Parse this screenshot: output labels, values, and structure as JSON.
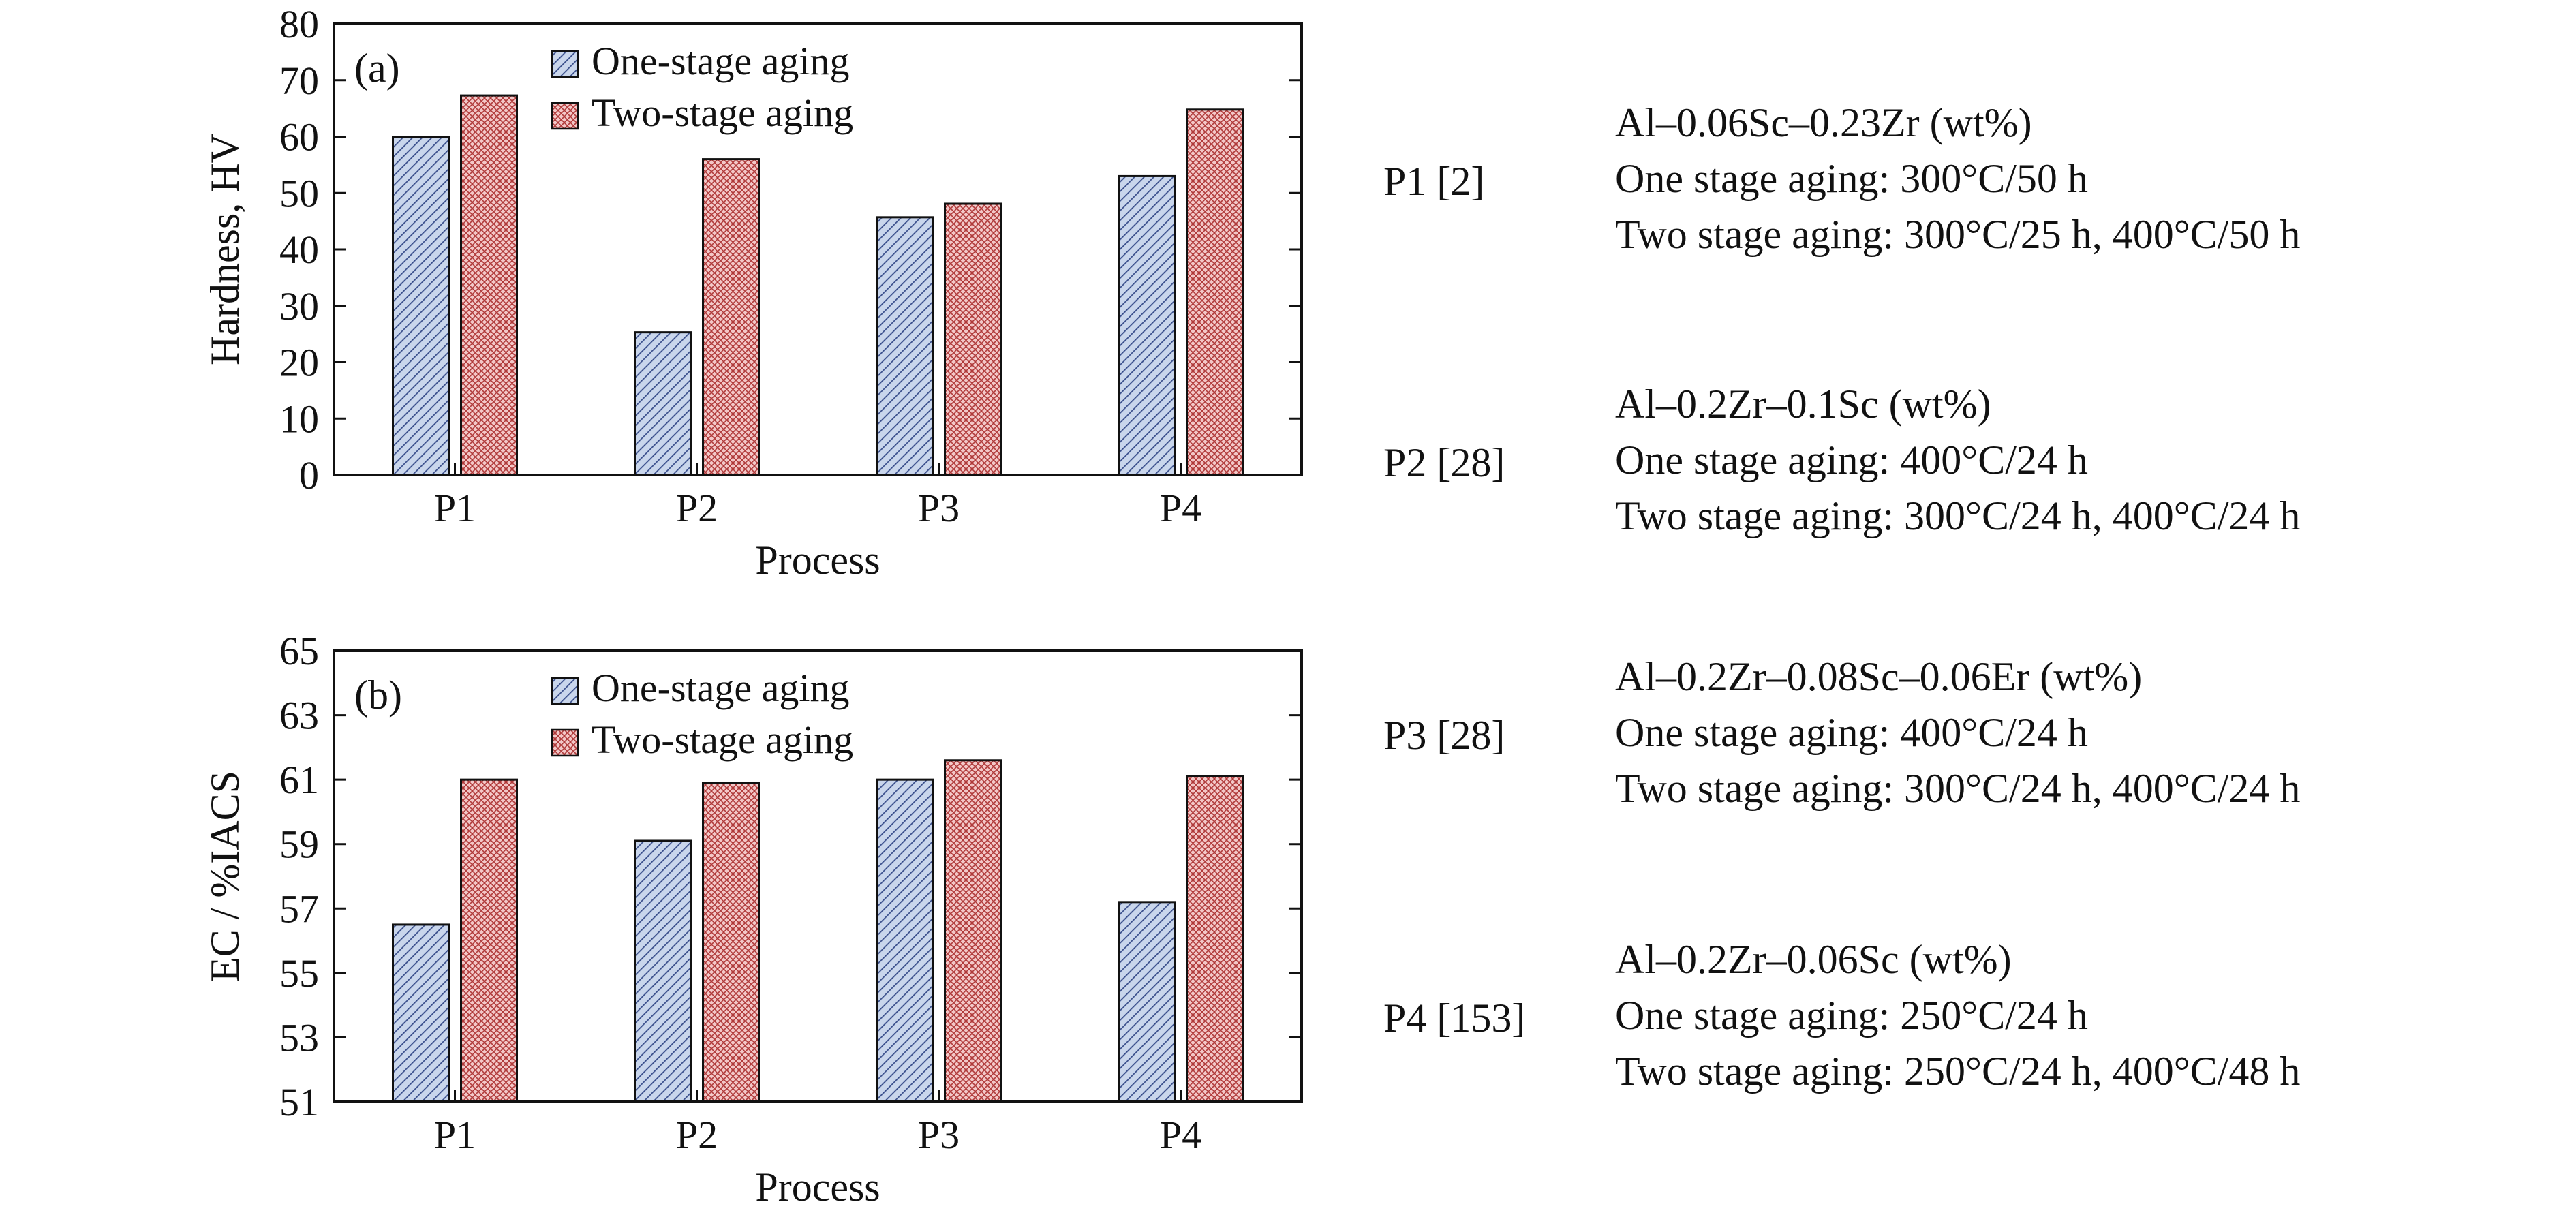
{
  "chart_data": [
    {
      "type": "bar",
      "panel_label": "(a)",
      "categories": [
        "P1",
        "P2",
        "P3",
        "P4"
      ],
      "series": [
        {
          "name": "One-stage aging",
          "values": [
            60,
            25.3,
            45.7,
            53
          ]
        },
        {
          "name": "Two-stage aging",
          "values": [
            67.3,
            56,
            48.1,
            64.8
          ]
        }
      ],
      "xlabel": "Process",
      "ylabel": "Hardness, HV",
      "ylim": [
        0,
        80
      ],
      "yticks": [
        0,
        10,
        20,
        30,
        40,
        50,
        60,
        70,
        80
      ],
      "grid": false,
      "legend": "top-left"
    },
    {
      "type": "bar",
      "panel_label": "(b)",
      "categories": [
        "P1",
        "P2",
        "P3",
        "P4"
      ],
      "series": [
        {
          "name": "One-stage aging",
          "values": [
            56.5,
            59.1,
            61,
            57.2
          ]
        },
        {
          "name": "Two-stage aging",
          "values": [
            61,
            60.9,
            61.6,
            61.1
          ]
        }
      ],
      "xlabel": "Process",
      "ylabel": "EC / %IACS",
      "ylim": [
        51,
        65
      ],
      "yticks": [
        51,
        53,
        55,
        57,
        59,
        61,
        63,
        65
      ],
      "grid": false,
      "legend": "top-left"
    }
  ],
  "colors": {
    "one_stage_fill": "#c9d6ec",
    "one_stage_hatch": "#3a4f8c",
    "two_stage_fill": "#f3c7c7",
    "two_stage_hatch": "#b03a3a",
    "axis": "#111111"
  },
  "process_notes": [
    {
      "id": "P1 [2]",
      "lines": [
        "Al–0.06Sc–0.23Zr (wt%)",
        "One stage aging: 300°C/50 h",
        "Two stage aging: 300°C/25 h, 400°C/50 h"
      ]
    },
    {
      "id": "P2 [28]",
      "lines": [
        "Al–0.2Zr–0.1Sc (wt%)",
        "One stage aging: 400°C/24 h",
        "Two stage aging: 300°C/24 h, 400°C/24 h"
      ]
    },
    {
      "id": "P3 [28]",
      "lines": [
        "Al–0.2Zr–0.08Sc–0.06Er (wt%)",
        "One stage aging: 400°C/24 h",
        "Two stage aging: 300°C/24 h, 400°C/24 h"
      ]
    },
    {
      "id": "P4 [153]",
      "lines": [
        "Al–0.2Zr–0.06Sc (wt%)",
        "One stage aging: 250°C/24 h",
        "Two stage aging: 250°C/24 h, 400°C/48 h"
      ]
    }
  ]
}
